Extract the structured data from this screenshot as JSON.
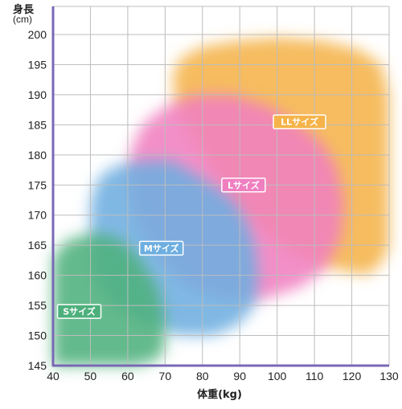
{
  "chart_data": {
    "type": "area",
    "title": "",
    "ylabel": "身長",
    "yunit": "(cm)",
    "xlabel": "体重(kg)",
    "xlim": [
      40,
      130
    ],
    "ylim": [
      145,
      200
    ],
    "xticks": [
      40,
      50,
      60,
      70,
      80,
      90,
      100,
      110,
      120,
      130
    ],
    "yticks": [
      145,
      150,
      155,
      160,
      165,
      170,
      175,
      180,
      185,
      190,
      195,
      200
    ],
    "grid": true,
    "regions": [
      {
        "name": "LLサイズ",
        "color": "#f5b349",
        "label_at": {
          "x": 106,
          "y": 185.5
        },
        "polygon": [
          [
            72,
            193
          ],
          [
            74,
            196
          ],
          [
            80,
            198
          ],
          [
            90,
            199
          ],
          [
            100,
            199.5
          ],
          [
            112,
            199
          ],
          [
            122,
            197.5
          ],
          [
            128,
            195
          ],
          [
            130,
            190
          ],
          [
            130,
            165
          ],
          [
            128,
            162
          ],
          [
            124,
            160
          ],
          [
            116,
            161
          ],
          [
            106,
            163
          ],
          [
            96,
            167
          ],
          [
            88,
            172
          ],
          [
            82,
            178
          ],
          [
            77,
            183
          ],
          [
            73,
            188
          ]
        ]
      },
      {
        "name": "Lサイズ",
        "color": "#f07fc0",
        "label_at": {
          "x": 91,
          "y": 175
        },
        "polygon": [
          [
            60,
            176
          ],
          [
            61,
            181
          ],
          [
            64,
            185
          ],
          [
            70,
            188
          ],
          [
            78,
            190
          ],
          [
            88,
            190
          ],
          [
            98,
            188
          ],
          [
            106,
            185
          ],
          [
            112,
            182
          ],
          [
            116,
            178
          ],
          [
            118,
            172
          ],
          [
            117,
            166
          ],
          [
            113,
            161
          ],
          [
            106,
            158
          ],
          [
            96,
            156
          ],
          [
            86,
            156
          ],
          [
            76,
            158
          ],
          [
            68,
            163
          ],
          [
            62,
            169
          ]
        ]
      },
      {
        "name": "Mサイズ",
        "color": "#6eaee0",
        "label_at": {
          "x": 69,
          "y": 164.5
        },
        "polygon": [
          [
            50,
            165
          ],
          [
            50,
            172
          ],
          [
            52,
            176
          ],
          [
            56,
            178
          ],
          [
            64,
            179
          ],
          [
            72,
            179
          ],
          [
            80,
            176
          ],
          [
            87,
            173
          ],
          [
            91,
            170
          ],
          [
            94,
            165
          ],
          [
            95,
            160
          ],
          [
            94,
            155
          ],
          [
            90,
            152
          ],
          [
            83,
            150
          ],
          [
            74,
            150
          ],
          [
            64,
            152
          ],
          [
            56,
            155
          ],
          [
            51,
            159
          ]
        ]
      },
      {
        "name": "Sサイズ",
        "color": "#4db07c",
        "label_at": {
          "x": 47,
          "y": 154
        },
        "polygon": [
          [
            40,
            145
          ],
          [
            40,
            163
          ],
          [
            44,
            166
          ],
          [
            52,
            167
          ],
          [
            58,
            166
          ],
          [
            63,
            163
          ],
          [
            68,
            158
          ],
          [
            70,
            153
          ],
          [
            70,
            148
          ],
          [
            68,
            146
          ],
          [
            62,
            145
          ]
        ]
      }
    ]
  }
}
